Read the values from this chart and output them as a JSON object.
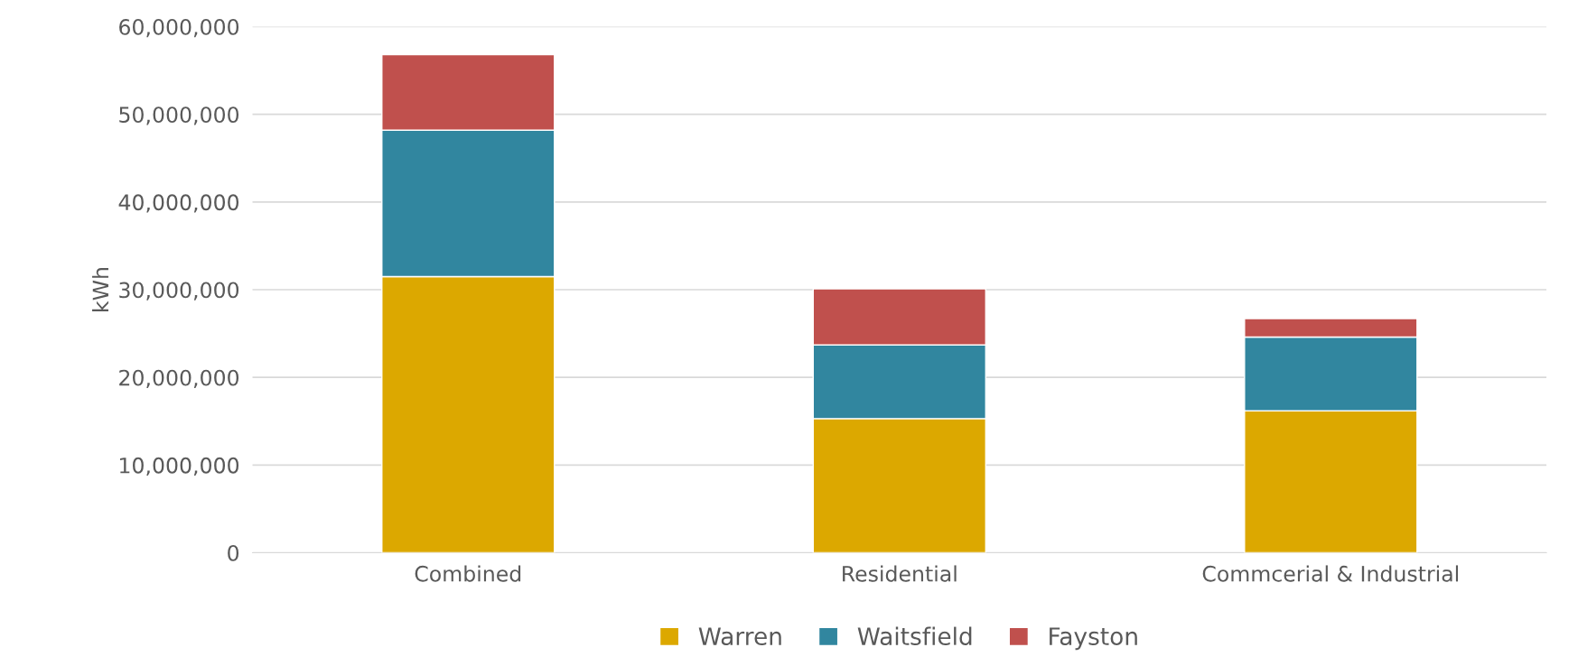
{
  "chart_data": {
    "type": "bar",
    "stacked": true,
    "ylabel": "kWh",
    "categories": [
      "Combined",
      "Residential",
      "Commcerial & Industrial"
    ],
    "series": [
      {
        "name": "Warren",
        "color": "#dca800",
        "values": [
          31500000,
          15300000,
          16200000
        ]
      },
      {
        "name": "Waitsfield",
        "color": "#31869f",
        "values": [
          16700000,
          8400000,
          8400000
        ]
      },
      {
        "name": "Fayston",
        "color": "#c0504d",
        "values": [
          8600000,
          6400000,
          2100000
        ]
      }
    ],
    "ylim": [
      0,
      60000000
    ],
    "yticks": [
      {
        "value": 0,
        "label": "0"
      },
      {
        "value": 10000000,
        "label": "10,000,000"
      },
      {
        "value": 20000000,
        "label": "20,000,000"
      },
      {
        "value": 30000000,
        "label": "30,000,000"
      },
      {
        "value": 40000000,
        "label": "40,000,000"
      },
      {
        "value": 50000000,
        "label": "50,000,000"
      },
      {
        "value": 60000000,
        "label": "60,000,000"
      }
    ],
    "grid": "y",
    "legend": "bottom"
  }
}
